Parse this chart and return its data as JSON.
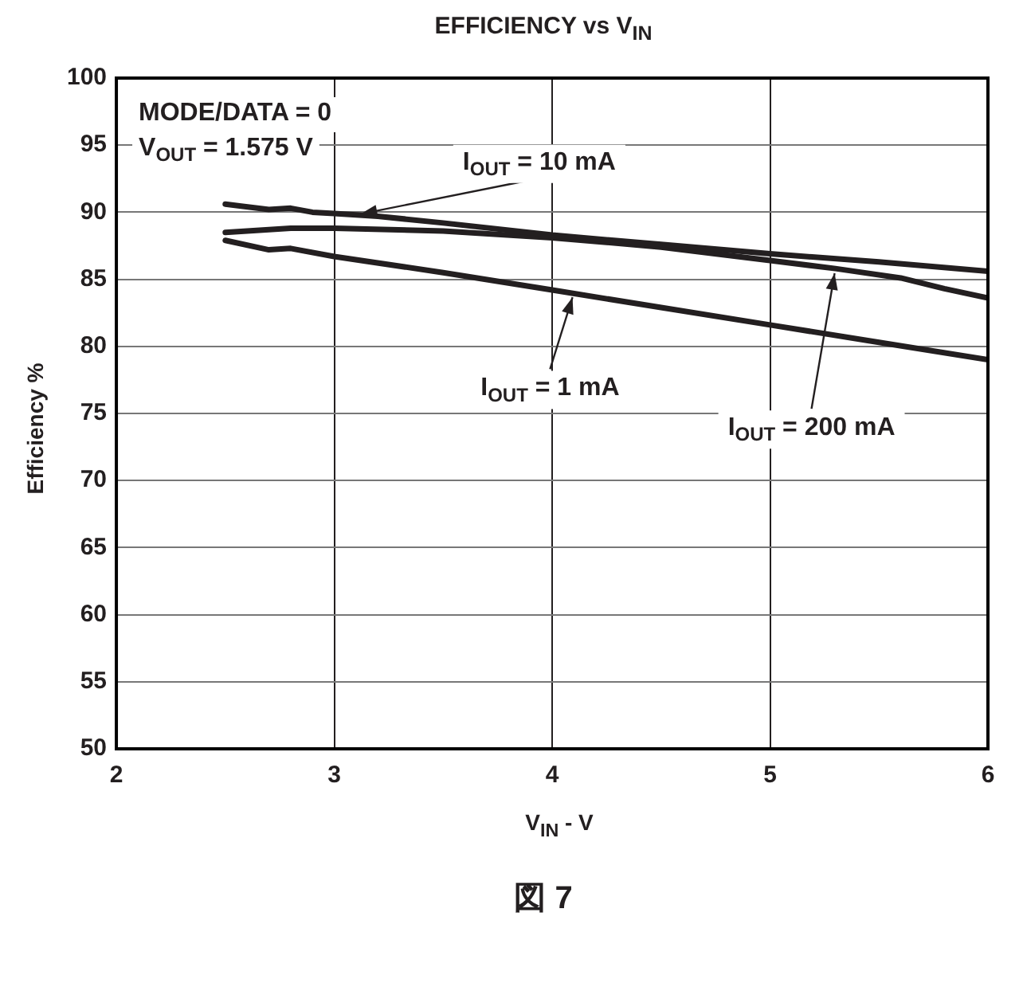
{
  "chart_data": {
    "type": "line",
    "title": "EFFICIENCY vs V$_{IN}$",
    "xlabel": "V$_{IN}$ - V",
    "ylabel": "Efficiency %",
    "xlim": [
      2,
      6
    ],
    "xticks": [
      2,
      3,
      4,
      5,
      6
    ],
    "ylim": [
      50,
      100
    ],
    "yticks": [
      50,
      55,
      60,
      65,
      70,
      75,
      80,
      85,
      90,
      95,
      100
    ],
    "grid": true,
    "legend": false,
    "marker": "none",
    "line_style": "solid",
    "series": [
      {
        "color": "#231f20",
        "x": [
          2.5,
          2.7,
          2.8,
          2.9,
          3.0,
          3.2,
          3.5,
          4.0,
          4.5,
          5.0,
          5.5,
          6.0
        ],
        "values": [
          90.6,
          90.2,
          90.3,
          90.0,
          89.9,
          89.7,
          89.2,
          88.3,
          87.6,
          86.9,
          86.3,
          85.6
        ]
      },
      {
        "color": "#231f20",
        "x": [
          2.5,
          2.8,
          3.0,
          3.5,
          4.0,
          4.5,
          5.0,
          5.3,
          5.6,
          5.8,
          6.0
        ],
        "values": [
          88.5,
          88.8,
          88.8,
          88.6,
          88.1,
          87.4,
          86.4,
          85.8,
          85.1,
          84.3,
          83.6
        ]
      },
      {
        "color": "#231f20",
        "x": [
          2.5,
          2.7,
          2.8,
          3.0,
          3.5,
          4.0,
          4.5,
          5.0,
          5.5,
          6.0
        ],
        "values": [
          87.9,
          87.2,
          87.3,
          86.7,
          85.5,
          84.2,
          82.9,
          81.6,
          80.3,
          79.0
        ]
      }
    ],
    "annotations": [
      {
        "text": "I$_{OUT}$ = 10 mA",
        "x": 3.1,
        "y": 89.8
      },
      {
        "text": "I$_{OUT}$ = 1 mA",
        "x": 4.1,
        "y": 84.0
      },
      {
        "text": "I$_{OUT}$ = 200 mA",
        "x": 5.3,
        "y": 85.8
      },
      "MODE/DATA = 0",
      "V$_{OUT}$ = 1.575 V",
      "図 7"
    ]
  }
}
